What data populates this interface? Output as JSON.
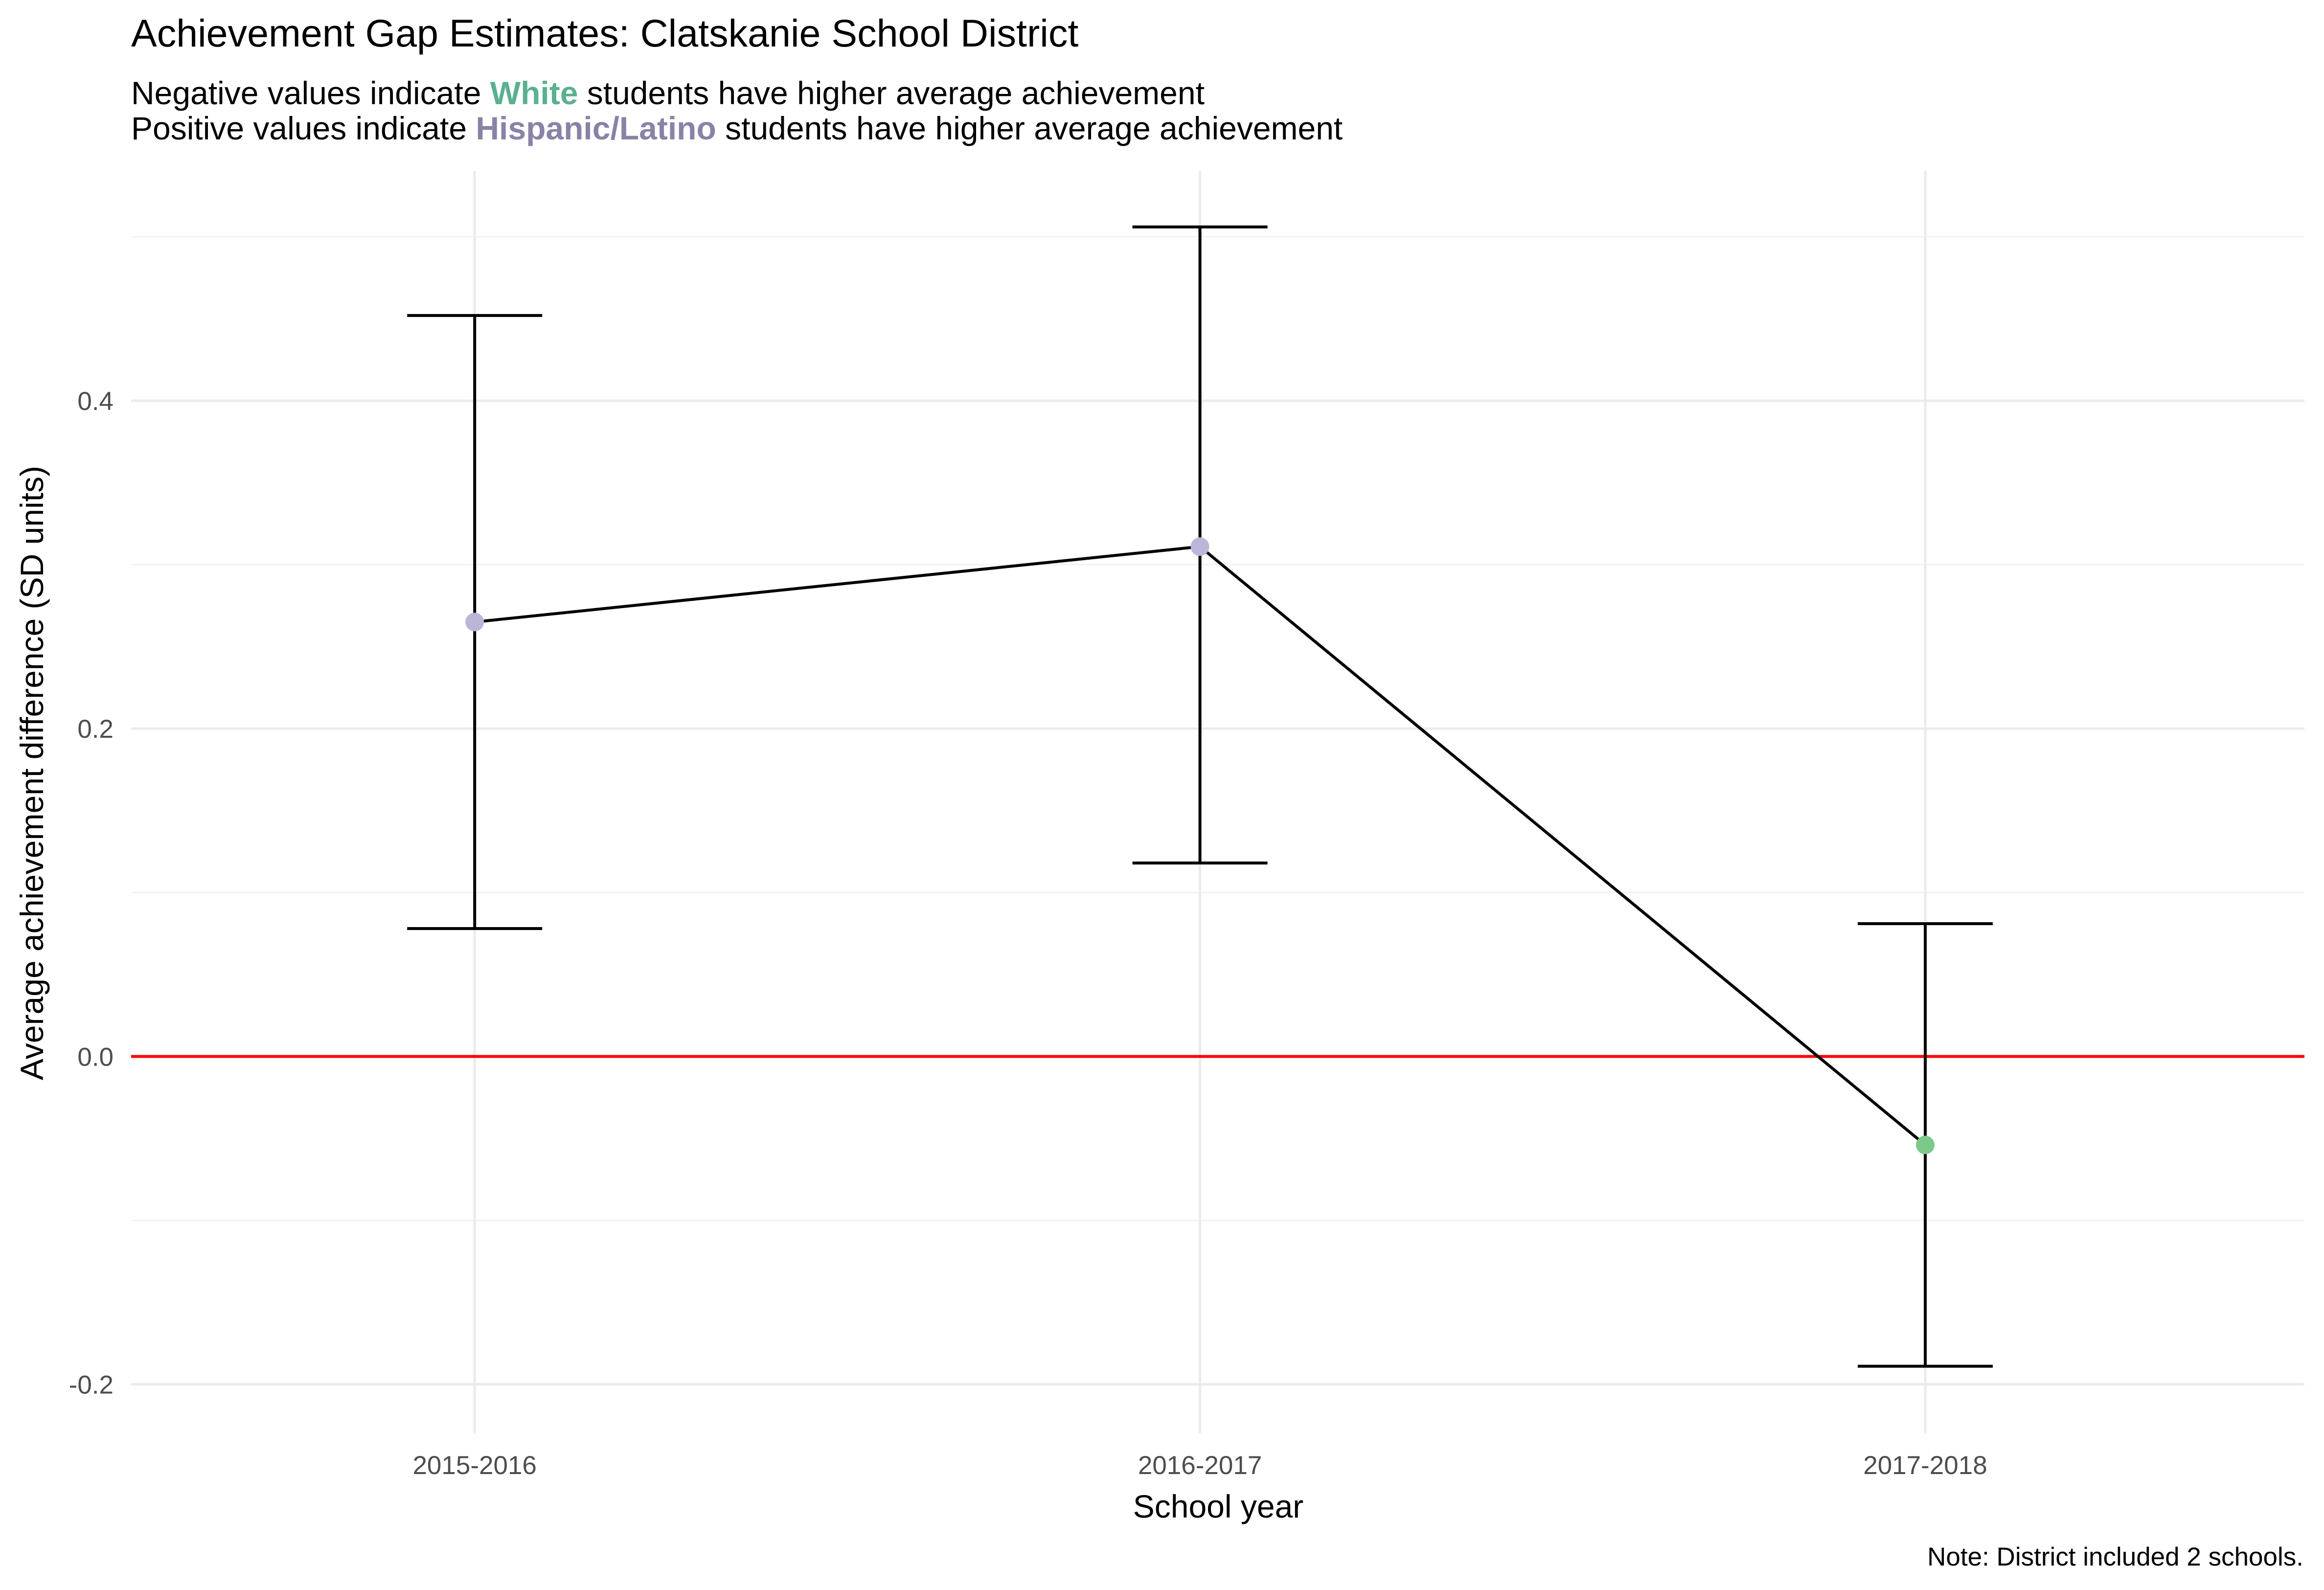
{
  "chart_data": {
    "type": "line",
    "title": "Achievement Gap Estimates: Clatskanie School District",
    "subtitle": {
      "line1": {
        "before": "Negative values indicate ",
        "highlight": "White",
        "after": " students have higher average achievement",
        "highlight_color": "#5bb08f"
      },
      "line2": {
        "before": "Positive values indicate ",
        "highlight": "Hispanic/Latino",
        "after": " students have higher average achievement",
        "highlight_color": "#8a82a6"
      }
    },
    "xlabel": "School year",
    "ylabel": "Average achievement difference (SD units)",
    "caption": "Note: District included 2 schools.",
    "categories": [
      "2015-2016",
      "2016-2017",
      "2017-2018"
    ],
    "series": [
      {
        "values": [
          0.265,
          0.311,
          -0.054
        ],
        "lower": [
          0.078,
          0.118,
          -0.189
        ],
        "upper": [
          0.452,
          0.506,
          0.081
        ],
        "point_colors": [
          "#bcb5d8",
          "#bcb5d8",
          "#7dc98a"
        ],
        "line_color": "#000000"
      }
    ],
    "reference_line": {
      "y": 0,
      "color": "#ff0000"
    },
    "yticks": [
      -0.2,
      0.0,
      0.2,
      0.4
    ],
    "ytick_labels": [
      "-0.2",
      "0.0",
      "0.2",
      "0.4"
    ],
    "ylim": [
      -0.23,
      0.54
    ],
    "grid": true
  }
}
